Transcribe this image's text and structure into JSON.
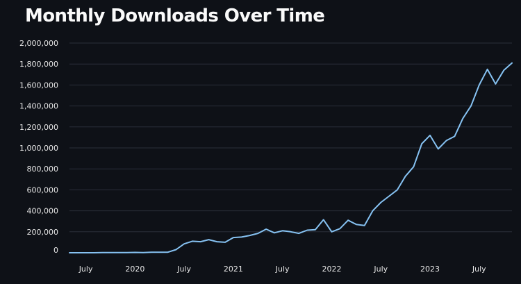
{
  "chart_data": {
    "type": "line",
    "title": "Monthly Downloads Over Time",
    "xlabel": "",
    "ylabel": "",
    "ylim": [
      0,
      2000000
    ],
    "y_ticks": [
      {
        "value": 0,
        "label": "0"
      },
      {
        "value": 200000,
        "label": "200,000"
      },
      {
        "value": 400000,
        "label": "400,000"
      },
      {
        "value": 600000,
        "label": "600,000"
      },
      {
        "value": 800000,
        "label": "800,000"
      },
      {
        "value": 1000000,
        "label": "1,000,000"
      },
      {
        "value": 1200000,
        "label": "1,200,000"
      },
      {
        "value": 1400000,
        "label": "1,400,000"
      },
      {
        "value": 1600000,
        "label": "1,600,000"
      },
      {
        "value": 1800000,
        "label": "1,800,000"
      },
      {
        "value": 2000000,
        "label": "2,000,000"
      }
    ],
    "x_ticks": [
      {
        "index": 2,
        "label": "July"
      },
      {
        "index": 8,
        "label": "2020"
      },
      {
        "index": 14,
        "label": "July"
      },
      {
        "index": 20,
        "label": "2021"
      },
      {
        "index": 26,
        "label": "July"
      },
      {
        "index": 32,
        "label": "2022"
      },
      {
        "index": 38,
        "label": "July"
      },
      {
        "index": 44,
        "label": "2023"
      },
      {
        "index": 50,
        "label": "July"
      }
    ],
    "x_start": "2019-05",
    "series": [
      {
        "name": "Monthly Downloads",
        "color": "#86c2f2",
        "values": [
          0,
          0,
          0,
          0,
          2000,
          1000,
          2000,
          1000,
          3000,
          2000,
          5000,
          5000,
          5000,
          30000,
          85000,
          110000,
          105000,
          125000,
          105000,
          100000,
          145000,
          150000,
          165000,
          185000,
          225000,
          190000,
          210000,
          200000,
          185000,
          215000,
          220000,
          315000,
          200000,
          230000,
          310000,
          270000,
          260000,
          400000,
          480000,
          540000,
          600000,
          730000,
          820000,
          1040000,
          1120000,
          990000,
          1070000,
          1110000,
          1280000,
          1400000,
          1600000,
          1750000,
          1610000,
          1740000,
          1810000
        ]
      }
    ]
  }
}
